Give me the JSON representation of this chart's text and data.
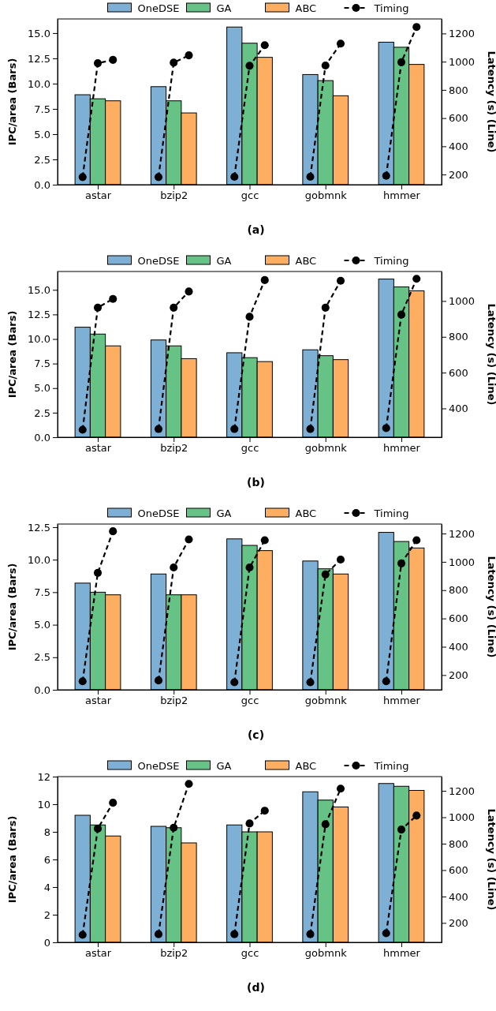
{
  "chart_data": [
    {
      "type": "bar",
      "categories": [
        null,
        null,
        "astar",
        null,
        null,
        null,
        null,
        "bzip2",
        null,
        null,
        null,
        null,
        "gcc",
        null,
        null,
        null,
        null,
        "gobmnk",
        null,
        null,
        null,
        null,
        "hmmer",
        null,
        null
      ],
      "ylabel": "IPC/area (Bars)",
      "y2label": "Latency (s) (Line)",
      "annotations": [
        "(a)"
      ],
      "legend": "top",
      "ylim": [
        0,
        16.4
      ],
      "yticks": [
        {
          "value": 0,
          "label": "0.0"
        },
        {
          "value": 2.5,
          "label": "2.5"
        },
        {
          "value": 5,
          "label": "5.0"
        },
        {
          "value": 7.5,
          "label": "7.5"
        },
        {
          "value": 10,
          "label": "10.0"
        },
        {
          "value": 12.5,
          "label": "12.5"
        },
        {
          "value": 15,
          "label": "15.0"
        }
      ],
      "y2lim": [
        128,
        1303
      ],
      "y2ticks": [
        200,
        400,
        600,
        800,
        1000,
        1200
      ],
      "series": [
        {
          "name": "OneDSE",
          "color": "#7eb0d5",
          "values": [
            null,
            8.9,
            null,
            null,
            null,
            null,
            9.7,
            null,
            null,
            null,
            null,
            15.6,
            null,
            null,
            null,
            null,
            10.9,
            null,
            null,
            null,
            null,
            14.1,
            null,
            null,
            null
          ]
        },
        {
          "name": "GA",
          "color": "#66c285",
          "values": [
            null,
            null,
            8.5,
            null,
            null,
            null,
            null,
            8.3,
            null,
            null,
            null,
            null,
            14.0,
            null,
            null,
            null,
            null,
            10.3,
            null,
            null,
            null,
            null,
            13.6,
            null,
            null
          ]
        },
        {
          "name": "ABC",
          "color": "#fdae61",
          "values": [
            null,
            null,
            null,
            8.3,
            null,
            null,
            null,
            null,
            7.1,
            null,
            null,
            null,
            null,
            12.6,
            null,
            null,
            null,
            null,
            8.8,
            null,
            null,
            null,
            null,
            11.9,
            null
          ]
        },
        {
          "name": "Timing",
          "type": "line",
          "axis": "y2",
          "color": "#000000",
          "marker": "circle",
          "line_style": "dashed",
          "values": [
            null,
            182,
            989,
            1013,
            null,
            null,
            182,
            993,
            1045,
            null,
            null,
            184,
            971,
            1117,
            null,
            null,
            184,
            973,
            1128,
            null,
            null,
            191,
            996,
            1246,
            null
          ]
        }
      ]
    },
    {
      "type": "bar",
      "categories": [
        null,
        null,
        "astar",
        null,
        null,
        null,
        null,
        "bzip2",
        null,
        null,
        null,
        null,
        "gcc",
        null,
        null,
        null,
        null,
        "gobmnk",
        null,
        null,
        null,
        null,
        "hmmer",
        null,
        null
      ],
      "ylabel": "IPC/area (Bars)",
      "y2label": "Latency (s) (Line)",
      "annotations": [
        "(b)"
      ],
      "legend": "top",
      "ylim": [
        0,
        16.87
      ],
      "yticks": [
        {
          "value": 0,
          "label": "0.0"
        },
        {
          "value": 2.5,
          "label": "2.5"
        },
        {
          "value": 5,
          "label": "5.0"
        },
        {
          "value": 7.5,
          "label": "7.5"
        },
        {
          "value": 10,
          "label": "10.0"
        },
        {
          "value": 12.5,
          "label": "12.5"
        },
        {
          "value": 15,
          "label": "15.0"
        }
      ],
      "y2lim": [
        239,
        1165
      ],
      "y2ticks": [
        400,
        600,
        800,
        1000
      ],
      "series": [
        {
          "name": "OneDSE",
          "color": "#7eb0d5",
          "values": [
            null,
            11.2,
            null,
            null,
            null,
            null,
            9.9,
            null,
            null,
            null,
            null,
            8.6,
            null,
            null,
            null,
            null,
            8.9,
            null,
            null,
            null,
            null,
            16.1,
            null,
            null,
            null
          ]
        },
        {
          "name": "GA",
          "color": "#66c285",
          "values": [
            null,
            null,
            10.5,
            null,
            null,
            null,
            null,
            9.3,
            null,
            null,
            null,
            null,
            8.1,
            null,
            null,
            null,
            null,
            8.3,
            null,
            null,
            null,
            null,
            15.3,
            null,
            null
          ]
        },
        {
          "name": "ABC",
          "color": "#fdae61",
          "values": [
            null,
            null,
            null,
            9.3,
            null,
            null,
            null,
            null,
            8.0,
            null,
            null,
            null,
            null,
            7.7,
            null,
            null,
            null,
            null,
            7.9,
            null,
            null,
            null,
            null,
            14.9,
            null
          ]
        },
        {
          "name": "Timing",
          "type": "line",
          "axis": "y2",
          "color": "#000000",
          "marker": "circle",
          "line_style": "dashed",
          "values": [
            null,
            281,
            963,
            1012,
            null,
            null,
            285,
            963,
            1053,
            null,
            null,
            285,
            912,
            1117,
            null,
            null,
            285,
            963,
            1113,
            null,
            null,
            290,
            924,
            1124,
            null
          ]
        }
      ]
    },
    {
      "type": "bar",
      "categories": [
        null,
        null,
        "astar",
        null,
        null,
        null,
        null,
        "bzip2",
        null,
        null,
        null,
        null,
        "gcc",
        null,
        null,
        null,
        null,
        "gobmnk",
        null,
        null,
        null,
        null,
        "hmmer",
        null,
        null
      ],
      "ylabel": "IPC/area (Bars)",
      "y2label": "Latency (s) (Line)",
      "annotations": [
        "(c)"
      ],
      "legend": "top",
      "ylim": [
        0,
        12.74
      ],
      "yticks": [
        {
          "value": 0,
          "label": "0.0"
        },
        {
          "value": 2.5,
          "label": "2.5"
        },
        {
          "value": 5,
          "label": "5.0"
        },
        {
          "value": 7.5,
          "label": "7.5"
        },
        {
          "value": 10,
          "label": "10.0"
        },
        {
          "value": 12.5,
          "label": "12.5"
        }
      ],
      "y2lim": [
        96,
        1267
      ],
      "y2ticks": [
        200,
        400,
        600,
        800,
        1000,
        1200
      ],
      "series": [
        {
          "name": "OneDSE",
          "color": "#7eb0d5",
          "values": [
            null,
            8.2,
            null,
            null,
            null,
            null,
            8.9,
            null,
            null,
            null,
            null,
            11.6,
            null,
            null,
            null,
            null,
            9.9,
            null,
            null,
            null,
            null,
            12.1,
            null,
            null,
            null
          ]
        },
        {
          "name": "GA",
          "color": "#66c285",
          "values": [
            null,
            null,
            7.5,
            null,
            null,
            null,
            null,
            7.3,
            null,
            null,
            null,
            null,
            11.1,
            null,
            null,
            null,
            null,
            9.3,
            null,
            null,
            null,
            null,
            11.4,
            null,
            null
          ]
        },
        {
          "name": "ABC",
          "color": "#fdae61",
          "values": [
            null,
            null,
            null,
            7.3,
            null,
            null,
            null,
            null,
            7.3,
            null,
            null,
            null,
            null,
            10.7,
            null,
            null,
            null,
            null,
            8.9,
            null,
            null,
            null,
            null,
            10.9,
            null
          ]
        },
        {
          "name": "Timing",
          "type": "line",
          "axis": "y2",
          "color": "#000000",
          "marker": "circle",
          "line_style": "dashed",
          "values": [
            null,
            156,
            922,
            1216,
            null,
            null,
            162,
            960,
            1158,
            null,
            null,
            149,
            960,
            1153,
            null,
            null,
            149,
            911,
            1016,
            null,
            null,
            156,
            989,
            1153,
            null
          ]
        }
      ]
    },
    {
      "type": "bar",
      "categories": [
        null,
        null,
        "astar",
        null,
        null,
        null,
        null,
        "bzip2",
        null,
        null,
        null,
        null,
        "gcc",
        null,
        null,
        null,
        null,
        "gobmnk",
        null,
        null,
        null,
        null,
        "hmmer",
        null,
        null
      ],
      "ylabel": "IPC/area (Bars)",
      "y2label": "Latency (s) (Line)",
      "annotations": [
        "(d)"
      ],
      "legend": "top",
      "ylim": [
        0,
        12
      ],
      "yticks": [
        0,
        2,
        4,
        6,
        8,
        10,
        12
      ],
      "y2lim": [
        53,
        1308
      ],
      "y2ticks": [
        200,
        400,
        600,
        800,
        1000,
        1200
      ],
      "series": [
        {
          "name": "OneDSE",
          "color": "#7eb0d5",
          "values": [
            null,
            9.2,
            null,
            null,
            null,
            null,
            8.4,
            null,
            null,
            null,
            null,
            8.5,
            null,
            null,
            null,
            null,
            10.9,
            null,
            null,
            null,
            null,
            11.5,
            null,
            null,
            null
          ]
        },
        {
          "name": "GA",
          "color": "#66c285",
          "values": [
            null,
            null,
            8.5,
            null,
            null,
            null,
            null,
            8.3,
            null,
            null,
            null,
            null,
            8.0,
            null,
            null,
            null,
            null,
            10.3,
            null,
            null,
            null,
            null,
            11.3,
            null,
            null
          ]
        },
        {
          "name": "ABC",
          "color": "#fdae61",
          "values": [
            null,
            null,
            null,
            7.7,
            null,
            null,
            null,
            null,
            7.2,
            null,
            null,
            null,
            null,
            8.0,
            null,
            null,
            null,
            null,
            9.8,
            null,
            null,
            null,
            null,
            11.0,
            null
          ]
        },
        {
          "name": "Timing",
          "type": "line",
          "axis": "y2",
          "color": "#000000",
          "marker": "circle",
          "line_style": "dashed",
          "values": [
            null,
            110,
            914,
            1110,
            null,
            null,
            115,
            921,
            1253,
            null,
            null,
            115,
            953,
            1050,
            null,
            null,
            115,
            947,
            1217,
            null,
            null,
            122,
            907,
            1013,
            null
          ]
        }
      ]
    }
  ]
}
